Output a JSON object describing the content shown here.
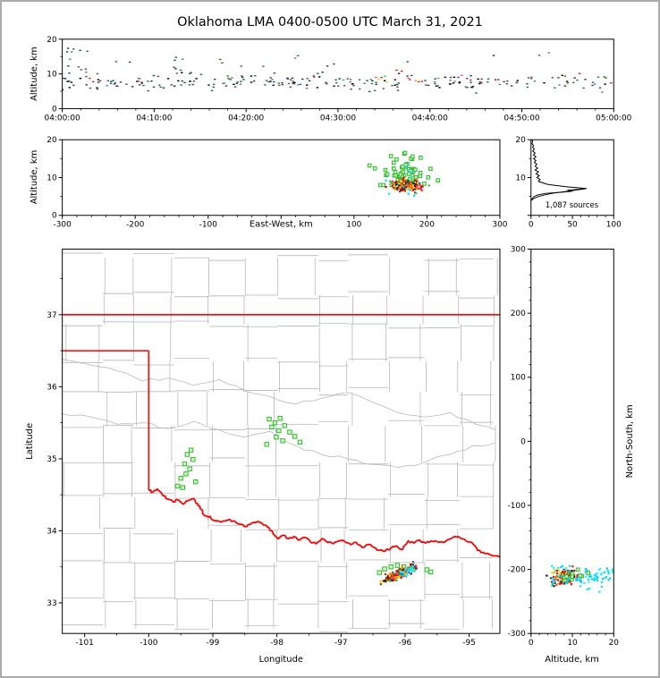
{
  "title": "Oklahoma LMA 0400-0500 UTC March 31, 2021",
  "labels": {
    "altitude_axis": "Altitude, km",
    "east_west_axis": "East-West, km",
    "longitude_axis": "Longitude",
    "latitude_axis": "Latitude",
    "north_south_axis": "North-South, km",
    "sources_count": "1,087 sources"
  },
  "colors": {
    "frame": "#000000",
    "figure_border": "#ababab",
    "background": "#ffffff",
    "county_line": "#b8b8b8",
    "state_line": "#ff0000",
    "histogram_line": "#000000",
    "green_square_fill": "#d4ffc8",
    "green_square_stroke": "#2eb82e",
    "palette_dark": [
      "#123c3a",
      "#0e4f4b",
      "#a52a2a",
      "#1f7a1f",
      "#3a5566",
      "#000000",
      "#2f4f4f",
      "#607080"
    ],
    "palette_core": [
      "#e01010",
      "#ff8c00",
      "#ffd000",
      "#151515",
      "#cc2200",
      "#2fbf2f",
      "#ff4040",
      "#a01010"
    ],
    "palette_cyan": [
      "#00e5ff",
      "#00cfee",
      "#33eaff"
    ]
  },
  "chart_data": [
    {
      "id": "time_height",
      "type": "scatter",
      "ylabel": "Altitude, km",
      "xlim": [
        0,
        3600
      ],
      "ylim": [
        0,
        20
      ],
      "xtick_values": [
        0,
        600,
        1200,
        1800,
        2400,
        3000,
        3600
      ],
      "xtick_labels": [
        "04:00:00",
        "04:10:00",
        "04:20:00",
        "04:30:00",
        "04:40:00",
        "04:50:00",
        "05:00:00"
      ],
      "ytick_values": [
        0,
        10,
        20
      ],
      "ytick_labels": [
        "0",
        "10",
        "20"
      ],
      "minor_x_step": 120,
      "minor_y_step": 5,
      "seed": 11,
      "clusters": [
        {
          "n": 240,
          "x_dist": "uniform",
          "x": [
            0,
            3600
          ],
          "y_dist": "gauss",
          "y": [
            7.6,
            1.1
          ],
          "y_clip": [
            4.5,
            10.5
          ],
          "palette": "palette_dark",
          "size": [
            2.4,
            1.4
          ]
        },
        {
          "n": 16,
          "x_dist": "uniform",
          "x": [
            0,
            3600
          ],
          "y_dist": "uniform",
          "y": [
            10,
            16.5
          ],
          "palette": "palette_dark",
          "size": [
            2.4,
            1.4
          ]
        },
        {
          "n": 14,
          "x_dist": "uniform",
          "x": [
            30,
            170
          ],
          "y_dist": "uniform",
          "y": [
            9,
            17.5
          ],
          "palette": "palette_dark",
          "size": [
            2.4,
            1.4
          ]
        },
        {
          "n": 8,
          "x_dist": "uniform",
          "x": [
            680,
            820
          ],
          "y_dist": "uniform",
          "y": [
            9,
            15
          ],
          "palette": "palette_dark",
          "size": [
            2.4,
            1.4
          ]
        },
        {
          "n": 20,
          "x_dist": "gauss",
          "x": [
            2250,
            260
          ],
          "y_dist": "gauss",
          "y": [
            8.3,
            1.2
          ],
          "palette": "palette_core",
          "size": [
            2.4,
            1.4
          ]
        }
      ]
    },
    {
      "id": "ew_height",
      "type": "scatter",
      "xlabel": "East-West, km",
      "ylabel": "Altitude, km",
      "xlim": [
        -300,
        300
      ],
      "ylim": [
        0,
        20
      ],
      "xtick_values": [
        -300,
        -200,
        -100,
        0,
        100,
        200,
        300
      ],
      "xtick_labels": [
        "-300",
        "-200",
        "-100",
        "",
        "100",
        "200",
        "300"
      ],
      "ytick_values": [
        0,
        10,
        20
      ],
      "ytick_labels": [
        "0",
        "10",
        "20"
      ],
      "minor_x_step": 20,
      "minor_y_step": 5,
      "seed": 22,
      "clusters": [
        {
          "n": 70,
          "shape": "square",
          "sq": 3.6,
          "x_dist": "gauss",
          "x": [
            168,
            15
          ],
          "y_dist": "gauss",
          "y": [
            11.5,
            2.4
          ],
          "y_clip": [
            8,
            17.5
          ],
          "palette": "green"
        },
        {
          "n": 150,
          "x_dist": "gauss",
          "x": [
            172,
            11
          ],
          "y_dist": "gauss",
          "y": [
            7.8,
            0.9
          ],
          "y_clip": [
            5,
            10
          ],
          "palette": "palette_core",
          "size": [
            2.2,
            2.2
          ]
        },
        {
          "n": 12,
          "x_dist": "gauss",
          "x": [
            175,
            14
          ],
          "y_dist": "uniform",
          "y": [
            5,
            13
          ],
          "palette": "palette_cyan",
          "size": [
            2.2,
            2.2
          ]
        }
      ]
    },
    {
      "id": "alt_histogram",
      "type": "line",
      "annotation": "1,087 sources",
      "xlim": [
        0,
        100
      ],
      "ylim": [
        0,
        20
      ],
      "xtick_values": [
        0,
        50,
        100
      ],
      "xtick_labels": [
        "0",
        "50",
        "100"
      ],
      "ytick_values": [
        0,
        10,
        20
      ],
      "ytick_labels": [
        "",
        "10",
        "20"
      ],
      "minor_x_step": 10,
      "minor_y_step": 5,
      "profile": [
        [
          1,
          20
        ],
        [
          2,
          19.5
        ],
        [
          1,
          19
        ],
        [
          3,
          18.5
        ],
        [
          2,
          18
        ],
        [
          4,
          17.5
        ],
        [
          2,
          17
        ],
        [
          5,
          16.5
        ],
        [
          3,
          16
        ],
        [
          6,
          15.5
        ],
        [
          3,
          15
        ],
        [
          6,
          14.5
        ],
        [
          4,
          14
        ],
        [
          7,
          13.5
        ],
        [
          5,
          13
        ],
        [
          8,
          12.5
        ],
        [
          5,
          12
        ],
        [
          9,
          11.5
        ],
        [
          6,
          11
        ],
        [
          10,
          10.5
        ],
        [
          7,
          10
        ],
        [
          11,
          9.5
        ],
        [
          9,
          9
        ],
        [
          14,
          8.6
        ],
        [
          20,
          8.2
        ],
        [
          30,
          7.9
        ],
        [
          45,
          7.5
        ],
        [
          67,
          7.1
        ],
        [
          58,
          6.9
        ],
        [
          44,
          6.6
        ],
        [
          50,
          6.4
        ],
        [
          36,
          6.1
        ],
        [
          18,
          5.8
        ],
        [
          8,
          5.4
        ],
        [
          4,
          5.0
        ],
        [
          2,
          4.6
        ],
        [
          1,
          4.2
        ],
        [
          0,
          3.8
        ]
      ],
      "smooth": [
        [
          0,
          3.9
        ],
        [
          3,
          4.4
        ],
        [
          8,
          4.9
        ],
        [
          16,
          5.4
        ],
        [
          28,
          5.9
        ],
        [
          42,
          6.3
        ],
        [
          55,
          6.7
        ],
        [
          64,
          7.0
        ],
        [
          67,
          7.1
        ]
      ]
    },
    {
      "id": "plan_view",
      "type": "scatter",
      "xlabel": "Longitude",
      "ylabel": "Latitude",
      "xlim": [
        -101.35,
        -94.52
      ],
      "ylim": [
        32.575,
        37.91
      ],
      "xtick_values": [
        -101,
        -100,
        -99,
        -98,
        -97,
        -96,
        -95
      ],
      "xtick_labels": [
        "-101",
        "-100",
        "-99",
        "-98",
        "-97",
        "-96",
        "-95"
      ],
      "ytick_values": [
        33,
        34,
        35,
        36,
        37
      ],
      "ytick_labels": [
        "33",
        "34",
        "35",
        "36",
        "37"
      ],
      "minor_x_step": 0.5,
      "minor_y_step": 0.5,
      "seed": 44,
      "county_grid": {
        "lon_start": -101.32,
        "lon_end": -94.5,
        "col_step": 0.56,
        "lat_start": 32.6,
        "lat_end": 37.95,
        "row_step": 0.47,
        "jitter": 0.07,
        "skip": 0.15,
        "seed": 9
      },
      "rivers": [
        [
          [
            -101.35,
            35.62
          ],
          [
            -100.9,
            35.58
          ],
          [
            -100.5,
            35.48
          ],
          [
            -100.1,
            35.5
          ],
          [
            -99.7,
            35.42
          ],
          [
            -99.3,
            35.52
          ],
          [
            -98.9,
            35.4
          ],
          [
            -98.5,
            35.3
          ],
          [
            -98.1,
            35.38
          ],
          [
            -97.7,
            35.18
          ],
          [
            -97.3,
            35.06
          ],
          [
            -96.9,
            35.0
          ],
          [
            -96.5,
            34.92
          ],
          [
            -96.1,
            34.88
          ],
          [
            -95.7,
            34.95
          ],
          [
            -95.3,
            35.06
          ],
          [
            -94.95,
            35.18
          ],
          [
            -94.6,
            35.22
          ]
        ],
        [
          [
            -101.35,
            36.38
          ],
          [
            -100.9,
            36.3
          ],
          [
            -100.5,
            36.22
          ],
          [
            -100.1,
            36.08
          ],
          [
            -99.7,
            36.12
          ],
          [
            -99.3,
            36.02
          ],
          [
            -98.9,
            36.1
          ],
          [
            -98.5,
            35.94
          ],
          [
            -98.1,
            35.86
          ],
          [
            -97.7,
            35.76
          ],
          [
            -97.3,
            35.84
          ],
          [
            -96.9,
            35.92
          ],
          [
            -96.5,
            35.78
          ],
          [
            -96.1,
            35.64
          ],
          [
            -95.7,
            35.58
          ],
          [
            -95.3,
            35.64
          ],
          [
            -94.9,
            35.48
          ],
          [
            -94.6,
            35.4
          ]
        ]
      ],
      "state_border": [
        [
          [
            -101.35,
            37.0
          ],
          [
            -94.52,
            37.0
          ]
        ],
        [
          [
            -101.35,
            36.5
          ],
          [
            -100.0,
            36.5
          ]
        ],
        [
          [
            -100.0,
            36.5
          ],
          [
            -100.0,
            34.56
          ]
        ]
      ],
      "red_river": [
        [
          -100.0,
          34.56
        ],
        [
          -99.93,
          34.54
        ],
        [
          -99.87,
          34.58
        ],
        [
          -99.78,
          34.49
        ],
        [
          -99.7,
          34.44
        ],
        [
          -99.62,
          34.4
        ],
        [
          -99.54,
          34.43
        ],
        [
          -99.46,
          34.37
        ],
        [
          -99.38,
          34.42
        ],
        [
          -99.3,
          34.45
        ],
        [
          -99.23,
          34.37
        ],
        [
          -99.2,
          34.31
        ],
        [
          -99.13,
          34.21
        ],
        [
          -99.04,
          34.2
        ],
        [
          -98.97,
          34.14
        ],
        [
          -98.87,
          34.12
        ],
        [
          -98.77,
          34.15
        ],
        [
          -98.67,
          34.14
        ],
        [
          -98.57,
          34.09
        ],
        [
          -98.47,
          34.06
        ],
        [
          -98.39,
          34.11
        ],
        [
          -98.3,
          34.13
        ],
        [
          -98.21,
          34.08
        ],
        [
          -98.12,
          34.04
        ],
        [
          -98.06,
          33.96
        ],
        [
          -97.98,
          33.89
        ],
        [
          -97.9,
          33.94
        ],
        [
          -97.82,
          33.89
        ],
        [
          -97.74,
          33.92
        ],
        [
          -97.66,
          33.87
        ],
        [
          -97.57,
          33.91
        ],
        [
          -97.48,
          33.85
        ],
        [
          -97.39,
          33.82
        ],
        [
          -97.3,
          33.89
        ],
        [
          -97.21,
          33.84
        ],
        [
          -97.12,
          33.82
        ],
        [
          -97.03,
          33.86
        ],
        [
          -96.94,
          33.85
        ],
        [
          -96.85,
          33.81
        ],
        [
          -96.76,
          33.84
        ],
        [
          -96.67,
          33.77
        ],
        [
          -96.58,
          33.81
        ],
        [
          -96.49,
          33.77
        ],
        [
          -96.4,
          33.73
        ],
        [
          -96.31,
          33.72
        ],
        [
          -96.22,
          33.76
        ],
        [
          -96.13,
          33.79
        ],
        [
          -96.04,
          33.74
        ],
        [
          -95.95,
          33.86
        ],
        [
          -95.86,
          33.83
        ],
        [
          -95.77,
          33.87
        ],
        [
          -95.68,
          33.83
        ],
        [
          -95.59,
          33.86
        ],
        [
          -95.5,
          33.85
        ],
        [
          -95.41,
          33.84
        ],
        [
          -95.32,
          33.88
        ],
        [
          -95.23,
          33.92
        ],
        [
          -95.14,
          33.9
        ],
        [
          -95.05,
          33.86
        ],
        [
          -94.96,
          33.84
        ],
        [
          -94.87,
          33.73
        ],
        [
          -94.78,
          33.7
        ],
        [
          -94.68,
          33.67
        ],
        [
          -94.52,
          33.64
        ]
      ],
      "green_squares": [
        [
          -99.55,
          34.62
        ],
        [
          -99.47,
          34.6
        ],
        [
          -99.5,
          34.73
        ],
        [
          -99.42,
          34.79
        ],
        [
          -99.36,
          34.86
        ],
        [
          -99.44,
          34.93
        ],
        [
          -99.31,
          34.99
        ],
        [
          -99.4,
          35.06
        ],
        [
          -99.34,
          35.12
        ],
        [
          -99.27,
          34.68
        ],
        [
          -98.12,
          35.55
        ],
        [
          -98.03,
          35.5
        ],
        [
          -97.95,
          35.56
        ],
        [
          -98.08,
          35.44
        ],
        [
          -97.97,
          35.39
        ],
        [
          -97.88,
          35.46
        ],
        [
          -97.8,
          35.37
        ],
        [
          -98.01,
          35.3
        ],
        [
          -97.91,
          35.25
        ],
        [
          -97.72,
          35.31
        ],
        [
          -97.64,
          35.23
        ],
        [
          -98.16,
          35.2
        ],
        [
          -96.32,
          33.47
        ],
        [
          -96.22,
          33.5
        ],
        [
          -96.12,
          33.52
        ],
        [
          -96.02,
          33.5
        ],
        [
          -95.94,
          33.47
        ],
        [
          -95.66,
          33.46
        ],
        [
          -95.6,
          33.43
        ],
        [
          -96.4,
          33.42
        ]
      ],
      "clusters": [
        {
          "n": 215,
          "x_dist": "gauss",
          "x": [
            -96.1,
            0.105
          ],
          "x_clip": [
            -96.42,
            -95.78
          ],
          "y_dist": "gauss",
          "y": [
            33.4,
            0.03
          ],
          "slope": 0.4,
          "palette": "palette_core",
          "size": [
            2.2,
            2.2
          ]
        },
        {
          "n": 28,
          "x_dist": "gauss",
          "x": [
            -95.98,
            0.1
          ],
          "y_dist": "gauss",
          "y": [
            33.44,
            0.035
          ],
          "slope": 0.3,
          "palette": "palette_cyan",
          "size": [
            2.2,
            2.2
          ]
        }
      ]
    },
    {
      "id": "ns_height",
      "type": "scatter",
      "xlabel": "Altitude, km",
      "ylabel": "North-South, km",
      "xlim": [
        0,
        20
      ],
      "ylim": [
        -300,
        300
      ],
      "xtick_values": [
        0,
        10,
        20
      ],
      "xtick_labels": [
        "0",
        "10",
        "20"
      ],
      "ytick_values": [
        -300,
        -200,
        -100,
        0,
        100,
        200,
        300
      ],
      "ytick_labels": [
        "-300",
        "-200",
        "-100",
        "0",
        "100",
        "200",
        "300"
      ],
      "minor_x_step": 2,
      "minor_y_step": 20,
      "seed": 33,
      "clusters": [
        {
          "n": 150,
          "x_dist": "gauss",
          "x": [
            8,
            1.4
          ],
          "x_clip": [
            3,
            13
          ],
          "y_dist": "gauss",
          "y": [
            -212,
            6
          ],
          "palette": "palette_core",
          "size": [
            2.2,
            2.2
          ]
        },
        {
          "n": 90,
          "x_dist": "uniform",
          "x": [
            5,
            20
          ],
          "y_dist": "gauss",
          "y": [
            -213,
            9
          ],
          "palette": "palette_cyan",
          "size": [
            2.2,
            2.2
          ]
        },
        {
          "n": 10,
          "shape": "square",
          "sq": 3.6,
          "x_dist": "uniform",
          "x": [
            8,
            14
          ],
          "y_dist": "gauss",
          "y": [
            -210,
            8
          ],
          "palette": "green"
        }
      ]
    }
  ]
}
